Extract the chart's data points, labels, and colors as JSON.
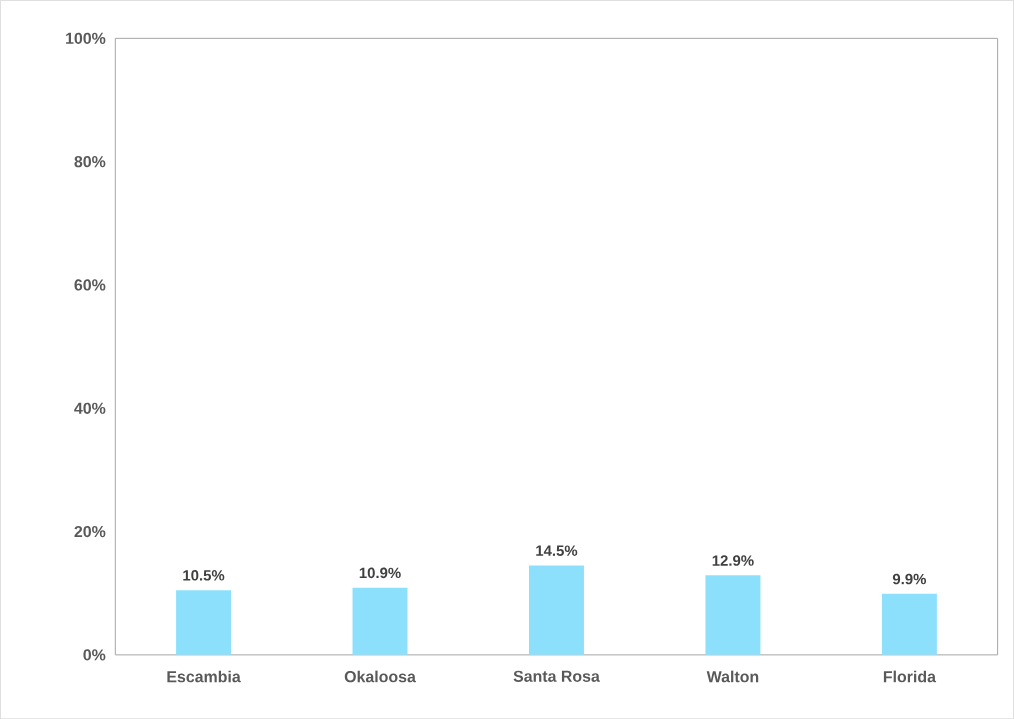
{
  "chart_data": {
    "type": "bar",
    "categories": [
      "Escambia",
      "Okaloosa",
      "Santa Rosa",
      "Walton",
      "Florida"
    ],
    "values": [
      10.5,
      10.9,
      14.5,
      12.9,
      9.9
    ],
    "value_labels": [
      "10.5%",
      "10.9%",
      "14.5%",
      "12.9%",
      "9.9%"
    ],
    "color": "#8ce0fc",
    "ylim": [
      0,
      100
    ],
    "yticks": [
      {
        "value": 0,
        "label": "0%"
      },
      {
        "value": 20,
        "label": "20%"
      },
      {
        "value": 40,
        "label": "40%"
      },
      {
        "value": 60,
        "label": "60%"
      },
      {
        "value": 80,
        "label": "80%"
      },
      {
        "value": 100,
        "label": "100%"
      }
    ]
  }
}
